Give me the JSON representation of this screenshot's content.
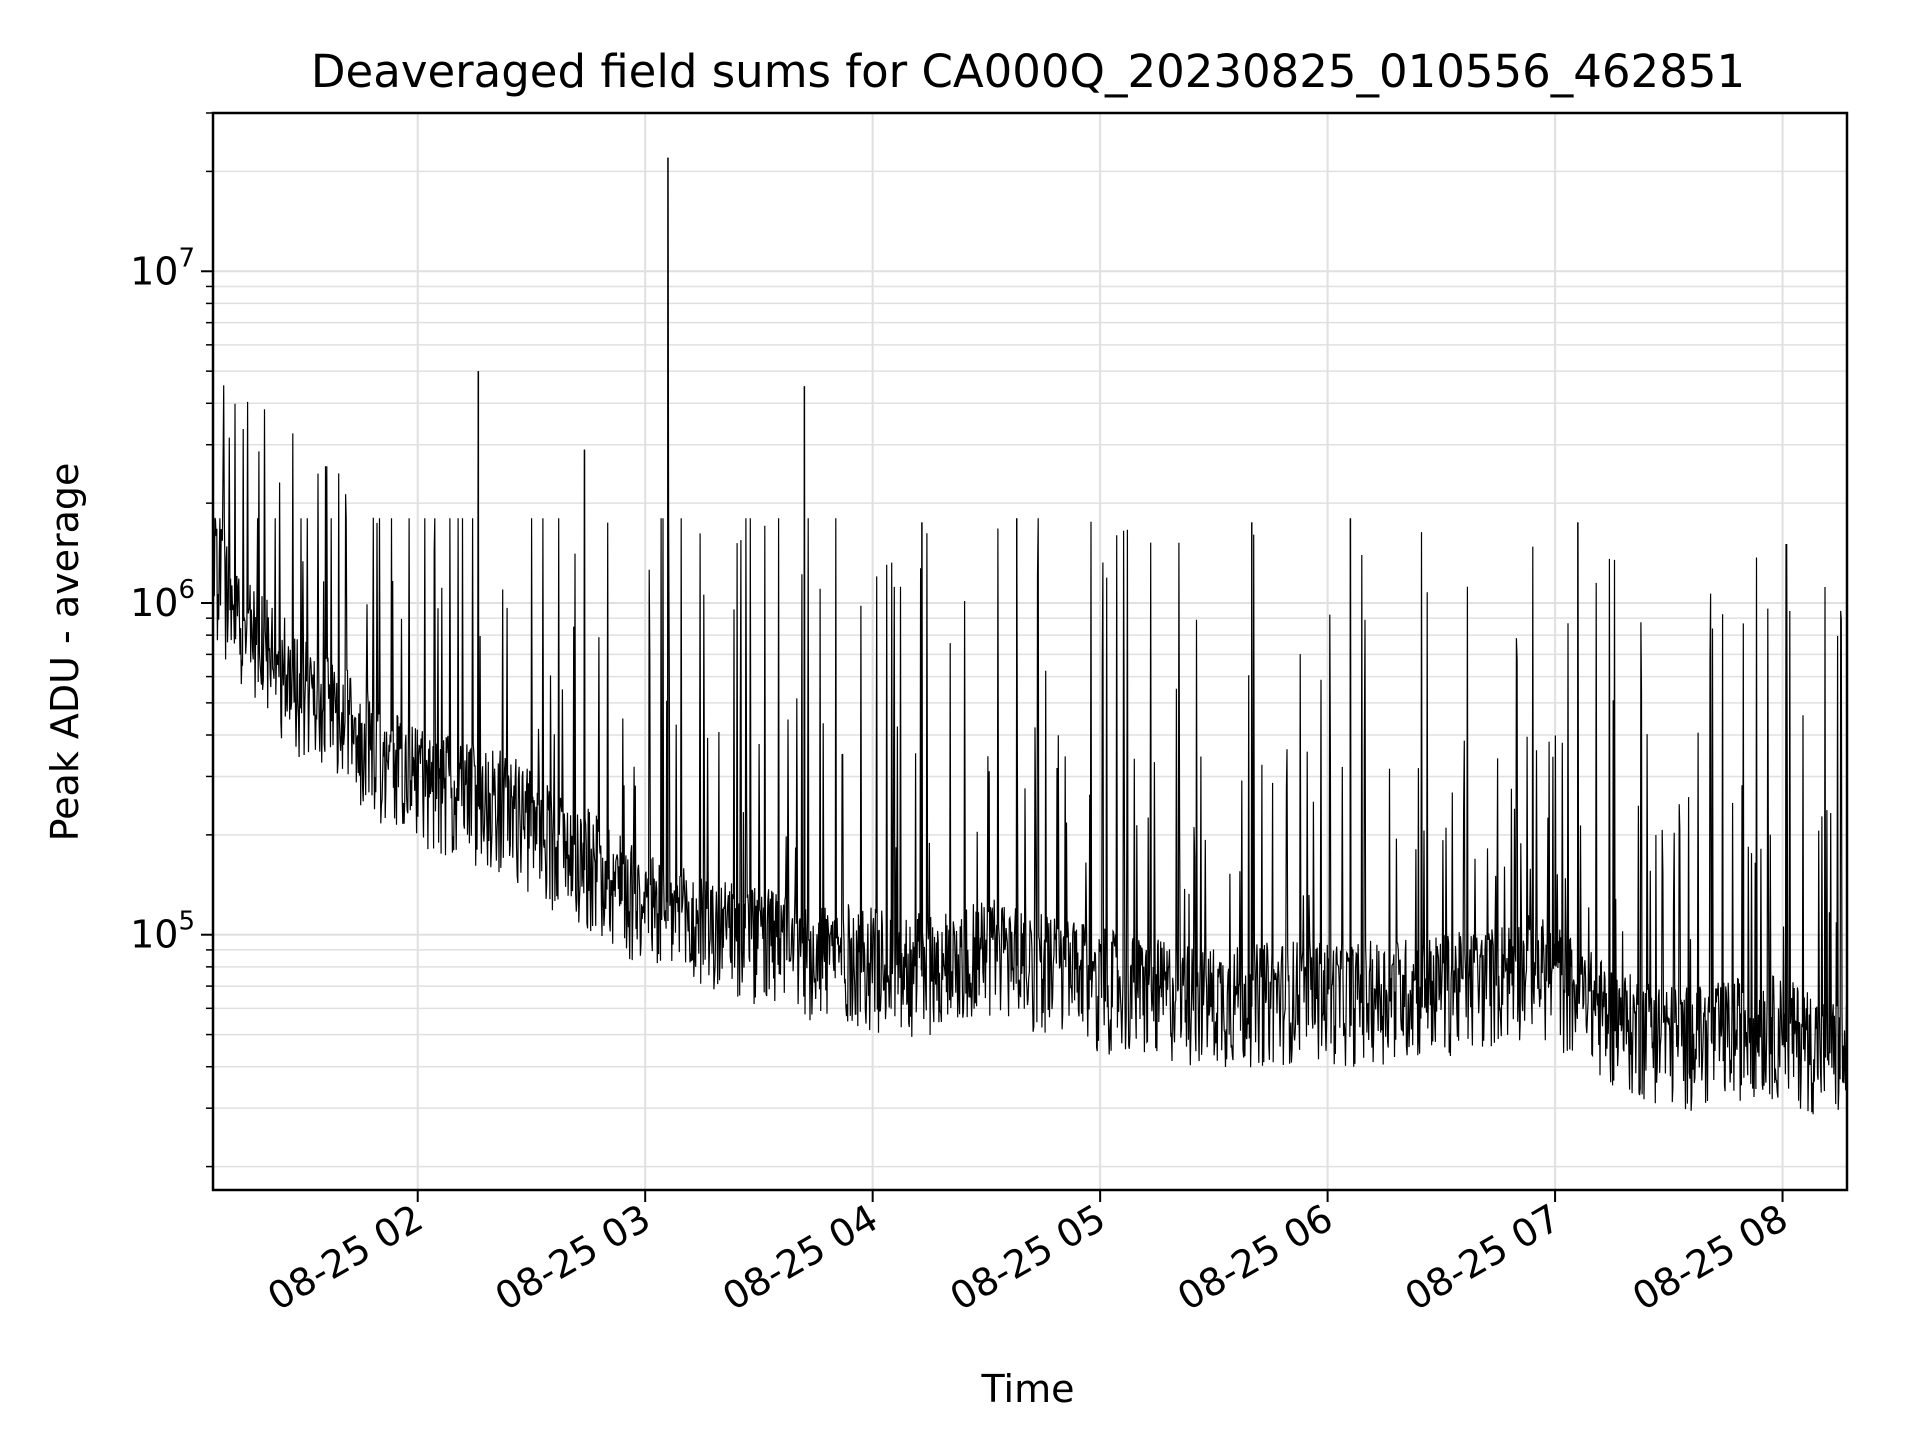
{
  "chart_data": {
    "type": "line",
    "title": "Deaveraged field sums for CA000Q_20230825_010556_462851",
    "xlabel": "Time",
    "ylabel": "Peak ADU - average",
    "y_scale": "log",
    "ylim": [
      17000,
      30000000
    ],
    "xlim": [
      "2023-08-25 01:06",
      "2023-08-25 08:17"
    ],
    "grid": true,
    "line_color": "#000000",
    "grid_color": "#e0e0e0",
    "x_ticks": [
      {
        "value": "2023-08-25 02:00",
        "label": "08-25 02"
      },
      {
        "value": "2023-08-25 03:00",
        "label": "08-25 03"
      },
      {
        "value": "2023-08-25 04:00",
        "label": "08-25 04"
      },
      {
        "value": "2023-08-25 05:00",
        "label": "08-25 05"
      },
      {
        "value": "2023-08-25 06:00",
        "label": "08-25 06"
      },
      {
        "value": "2023-08-25 07:00",
        "label": "08-25 07"
      },
      {
        "value": "2023-08-25 08:00",
        "label": "08-25 08"
      }
    ],
    "y_ticks": [
      {
        "value": 100000,
        "base": "10",
        "exp": "5"
      },
      {
        "value": 1000000,
        "base": "10",
        "exp": "6"
      },
      {
        "value": 10000000,
        "base": "10",
        "exp": "7"
      }
    ],
    "series": [
      {
        "x": [
          "2023-08-25 01:06",
          "2023-08-25 01:12",
          "2023-08-25 01:18",
          "2023-08-25 01:24",
          "2023-08-25 01:30",
          "2023-08-25 01:36",
          "2023-08-25 01:42",
          "2023-08-25 01:48",
          "2023-08-25 01:54",
          "2023-08-25 02:00",
          "2023-08-25 02:06",
          "2023-08-25 02:12",
          "2023-08-25 02:18",
          "2023-08-25 02:24",
          "2023-08-25 02:30",
          "2023-08-25 02:36",
          "2023-08-25 02:42",
          "2023-08-25 02:48",
          "2023-08-25 02:54",
          "2023-08-25 03:00",
          "2023-08-25 03:06",
          "2023-08-25 03:12",
          "2023-08-25 03:18",
          "2023-08-25 03:24",
          "2023-08-25 03:30",
          "2023-08-25 03:36",
          "2023-08-25 03:42",
          "2023-08-25 03:48",
          "2023-08-25 03:54",
          "2023-08-25 04:00",
          "2023-08-25 04:06",
          "2023-08-25 04:12",
          "2023-08-25 04:18",
          "2023-08-25 04:24",
          "2023-08-25 04:30",
          "2023-08-25 04:36",
          "2023-08-25 04:42",
          "2023-08-25 04:48",
          "2023-08-25 04:54",
          "2023-08-25 05:00",
          "2023-08-25 05:06",
          "2023-08-25 05:12",
          "2023-08-25 05:18",
          "2023-08-25 05:24",
          "2023-08-25 05:30",
          "2023-08-25 05:36",
          "2023-08-25 05:42",
          "2023-08-25 05:48",
          "2023-08-25 05:54",
          "2023-08-25 06:00",
          "2023-08-25 06:06",
          "2023-08-25 06:12",
          "2023-08-25 06:18",
          "2023-08-25 06:24",
          "2023-08-25 06:30",
          "2023-08-25 06:36",
          "2023-08-25 06:42",
          "2023-08-25 06:48",
          "2023-08-25 06:54",
          "2023-08-25 07:00",
          "2023-08-25 07:06",
          "2023-08-25 07:12",
          "2023-08-25 07:18",
          "2023-08-25 07:24",
          "2023-08-25 07:30",
          "2023-08-25 07:36",
          "2023-08-25 07:42",
          "2023-08-25 07:48",
          "2023-08-25 07:54",
          "2023-08-25 08:00",
          "2023-08-25 08:06",
          "2023-08-25 08:12",
          "2023-08-25 08:17"
        ],
        "y": [
          1200000,
          900000,
          700000,
          600000,
          500000,
          450000,
          400000,
          350000,
          300000,
          280000,
          260000,
          250000,
          240000,
          230000,
          200000,
          180000,
          160000,
          150000,
          130000,
          120000,
          110000,
          100000,
          95000,
          92000,
          90000,
          88000,
          85000,
          82000,
          80000,
          78000,
          76000,
          75000,
          74000,
          80000,
          85000,
          82000,
          78000,
          74000,
          70000,
          68000,
          65000,
          63000,
          62000,
          61000,
          60000,
          60000,
          61000,
          62000,
          63000,
          62000,
          61000,
          62000,
          63000,
          64000,
          65000,
          66000,
          68000,
          72000,
          75000,
          70000,
          62000,
          55000,
          50000,
          48000,
          46000,
          45000,
          46000,
          48000,
          50000,
          48000,
          45000,
          42000,
          40000
        ]
      }
    ],
    "spikes": [
      {
        "x": "2023-08-25 02:16",
        "y": 5000000
      },
      {
        "x": "2023-08-25 02:44",
        "y": 2900000
      },
      {
        "x": "2023-08-25 03:06",
        "y": 22000000
      },
      {
        "x": "2023-08-25 03:42",
        "y": 4500000
      },
      {
        "x": "2023-08-25 04:13",
        "y": 1750000
      },
      {
        "x": "2023-08-25 04:38",
        "y": 1800000
      },
      {
        "x": "2023-08-25 05:40",
        "y": 1750000
      },
      {
        "x": "2023-08-25 06:06",
        "y": 1800000
      },
      {
        "x": "2023-08-25 07:06",
        "y": 1750000
      },
      {
        "x": "2023-08-25 08:01",
        "y": 1500000
      }
    ]
  }
}
